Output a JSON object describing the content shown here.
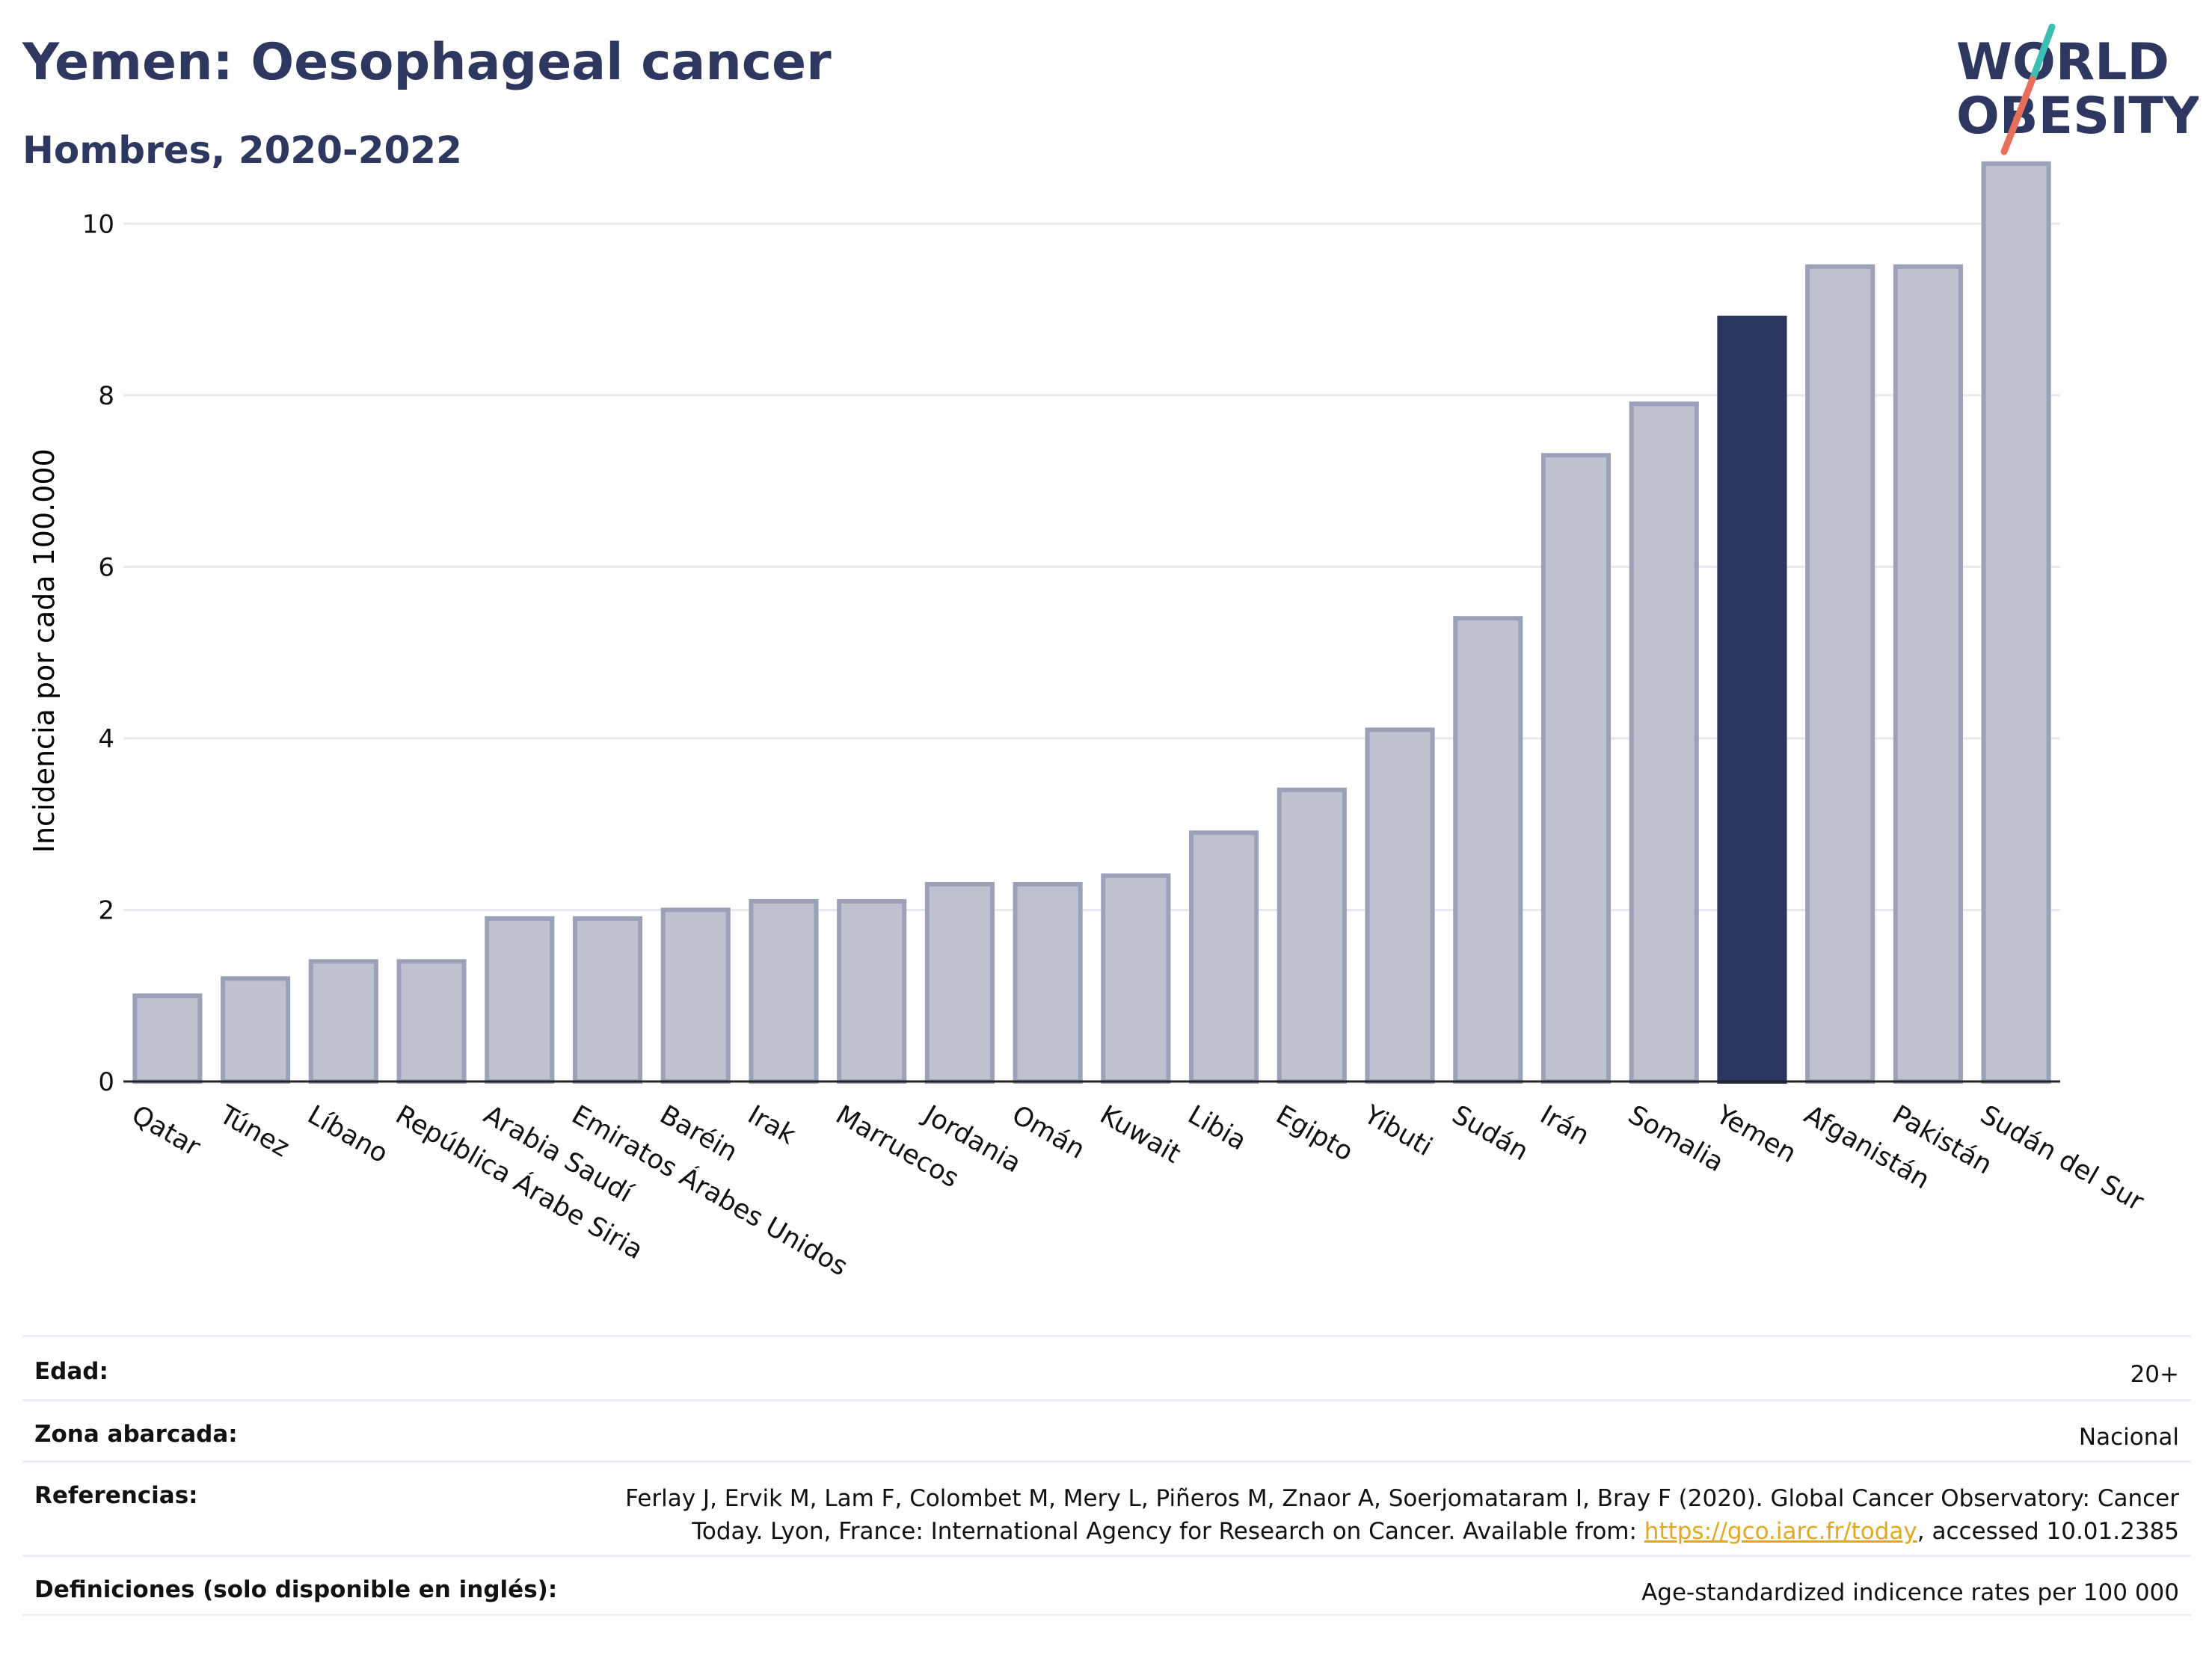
{
  "header": {
    "title": "Yemen: Oesophageal cancer",
    "subtitle": "Hombres, 2020-2022"
  },
  "logo": {
    "line1": "WORLD",
    "line2": "OBESITY",
    "text_color": "#2d3760",
    "slash_colors": [
      "#e8705a",
      "#3bbfb3"
    ]
  },
  "colors": {
    "bar": "#bec2cf",
    "bar_outline": "#9ba1b8",
    "highlight": "#2b3560",
    "grid": "#e6e8ee",
    "axis": "#222222"
  },
  "chart_data": {
    "type": "bar",
    "title": "",
    "xlabel": "",
    "ylabel": "Incidencia por cada 100.000",
    "ylim": [
      0,
      11
    ],
    "yticks": [
      0,
      2,
      4,
      6,
      8,
      10
    ],
    "grid": true,
    "highlight": "Yemen",
    "categories": [
      "Qatar",
      "Túnez",
      "Líbano",
      "República Árabe Siria",
      "Arabia Saudí",
      "Emiratos Árabes Unidos",
      "Baréin",
      "Irak",
      "Marruecos",
      "Jordania",
      "Omán",
      "Kuwait",
      "Libia",
      "Egipto",
      "Yibuti",
      "Sudán",
      "Irán",
      "Somalia",
      "Yemen",
      "Afganistán",
      "Pakistán",
      "Sudán del Sur"
    ],
    "values": [
      1.0,
      1.2,
      1.4,
      1.4,
      1.9,
      1.9,
      2.0,
      2.1,
      2.1,
      2.3,
      2.3,
      2.4,
      2.9,
      3.4,
      4.1,
      5.4,
      7.3,
      7.9,
      8.9,
      9.5,
      9.5,
      10.7
    ]
  },
  "table": {
    "rows": [
      {
        "label": "Edad:",
        "value": "20+"
      },
      {
        "label": "Zona abarcada:",
        "value": "Nacional"
      },
      {
        "label": "Referencias:",
        "value_line1": "Ferlay J, Ervik M, Lam F, Colombet M, Mery L, Piñeros M, Znaor A, Soerjomataram I, Bray F (2020). Global Cancer Observatory: Cancer",
        "value_line2_pre": "Today. Lyon, France: International Agency for Research on Cancer. Available from: ",
        "link": "https://gco.iarc.fr/today",
        "value_line2_post": ", accessed 10.01.2385"
      },
      {
        "label": "Definiciones (solo disponible en inglés):",
        "value": "Age-standardized indicence rates per 100 000"
      }
    ]
  }
}
